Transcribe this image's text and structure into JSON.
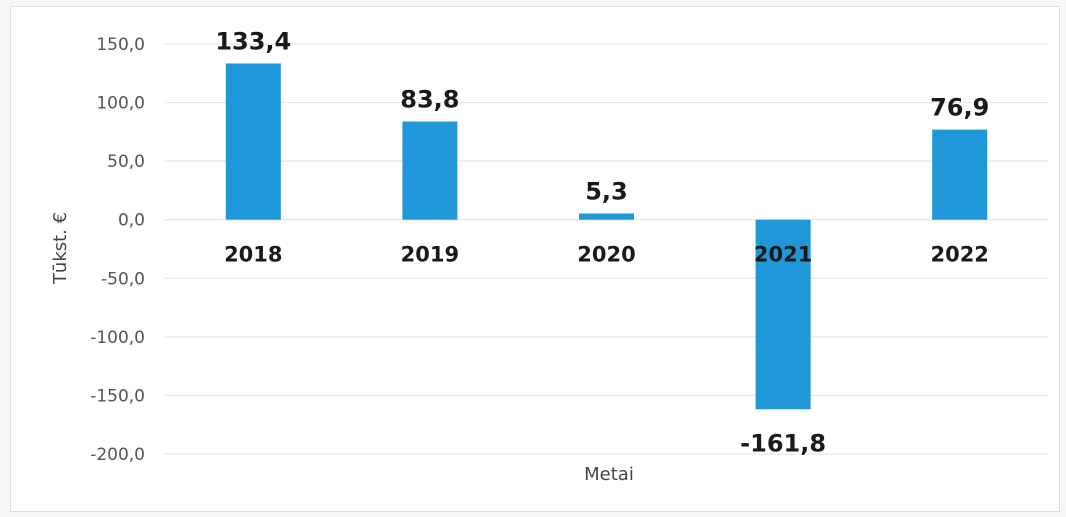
{
  "chart_data": {
    "type": "bar",
    "categories": [
      "2018",
      "2019",
      "2020",
      "2021",
      "2022"
    ],
    "values": [
      133.4,
      83.8,
      5.3,
      -161.8,
      76.9
    ],
    "value_labels": [
      "133,4",
      "83,8",
      "5,3",
      "-161,8",
      "76,9"
    ],
    "title": "",
    "xlabel": "Metai",
    "ylabel": "Tūkst. €",
    "ylim": [
      -200,
      150
    ],
    "yticks": [
      150,
      100,
      50,
      0,
      -50,
      -100,
      -150,
      -200
    ],
    "ytick_labels": [
      "150,0",
      "100,0",
      "50,0",
      "0,0",
      "-50,0",
      "-100,0",
      "-150,0",
      "-200,0"
    ],
    "grid": true,
    "legend": "none",
    "bar_color": "#1f97d8",
    "gridline_color": "#e6e6e6"
  }
}
